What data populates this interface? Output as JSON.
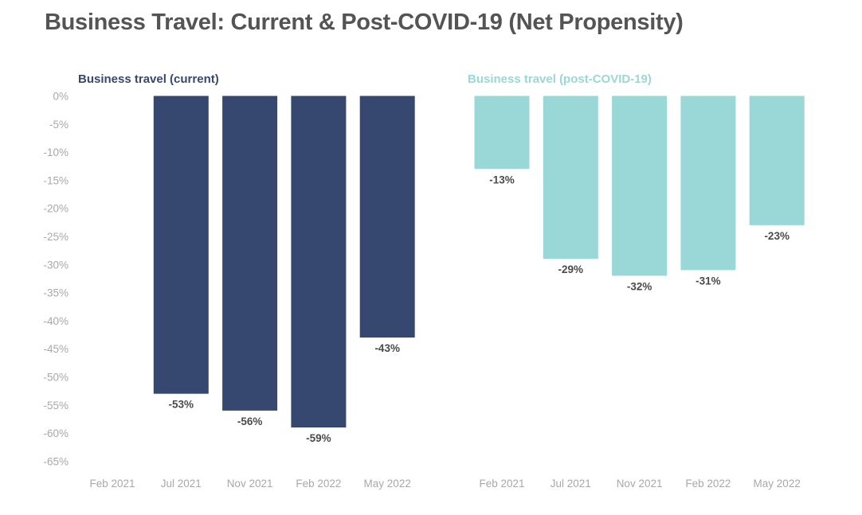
{
  "title": "Business Travel: Current & Post-COVID-19 (Net Propensity)",
  "colors": {
    "title": "#545454",
    "current": "#364770",
    "post_covid": "#99d8d6",
    "tick": "#a8a8a8",
    "data_label": "#4a4a4a"
  },
  "chart_data": [
    {
      "type": "bar",
      "title": "Business travel (current)",
      "categories": [
        "Feb 2021",
        "Jul 2021",
        "Nov 2021",
        "Feb 2022",
        "May 2022"
      ],
      "values": [
        null,
        -53,
        -56,
        -59,
        -43
      ],
      "data_labels": [
        null,
        "-53%",
        "-56%",
        "-59%",
        "-43%"
      ],
      "color": "#364770",
      "yticks": [
        0,
        -5,
        -10,
        -15,
        -20,
        -25,
        -30,
        -35,
        -40,
        -45,
        -50,
        -55,
        -60,
        -65
      ],
      "ytick_labels": [
        "0%",
        "-5%",
        "-10%",
        "-15%",
        "-20%",
        "-25%",
        "-30%",
        "-35%",
        "-40%",
        "-45%",
        "-50%",
        "-55%",
        "-60%",
        "-65%"
      ],
      "ylim": [
        -65,
        0
      ],
      "grid": false,
      "legend": "none"
    },
    {
      "type": "bar",
      "title": "Business travel (post-COVID-19)",
      "categories": [
        "Feb 2021",
        "Jul 2021",
        "Nov 2021",
        "Feb 2022",
        "May 2022"
      ],
      "values": [
        -13,
        -29,
        -32,
        -31,
        -23
      ],
      "data_labels": [
        "-13%",
        "-29%",
        "-32%",
        "-31%",
        "-23%"
      ],
      "color": "#99d8d6",
      "ylim": [
        -65,
        0
      ],
      "grid": false,
      "legend": "none"
    }
  ]
}
